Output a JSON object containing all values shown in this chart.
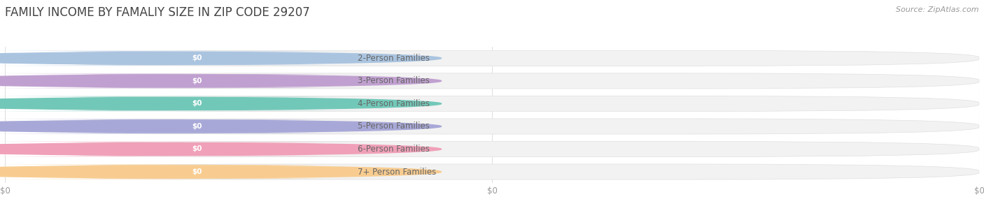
{
  "title": "FAMILY INCOME BY FAMALIY SIZE IN ZIP CODE 29207",
  "source": "Source: ZipAtlas.com",
  "categories": [
    "2-Person Families",
    "3-Person Families",
    "4-Person Families",
    "5-Person Families",
    "6-Person Families",
    "7+ Person Families"
  ],
  "values": [
    0,
    0,
    0,
    0,
    0,
    0
  ],
  "bar_colors": [
    "#aac4e0",
    "#c0a0d0",
    "#72c8b8",
    "#a8a8d8",
    "#f0a0b8",
    "#f8cc90"
  ],
  "background_color": "#ffffff",
  "bar_bg_color": "#f2f2f2",
  "grid_color": "#e0e0e0",
  "label_text_color": "#666666",
  "title_color": "#444444",
  "source_color": "#999999",
  "title_fontsize": 12,
  "label_fontsize": 8.5,
  "value_fontsize": 7.5,
  "source_fontsize": 8
}
